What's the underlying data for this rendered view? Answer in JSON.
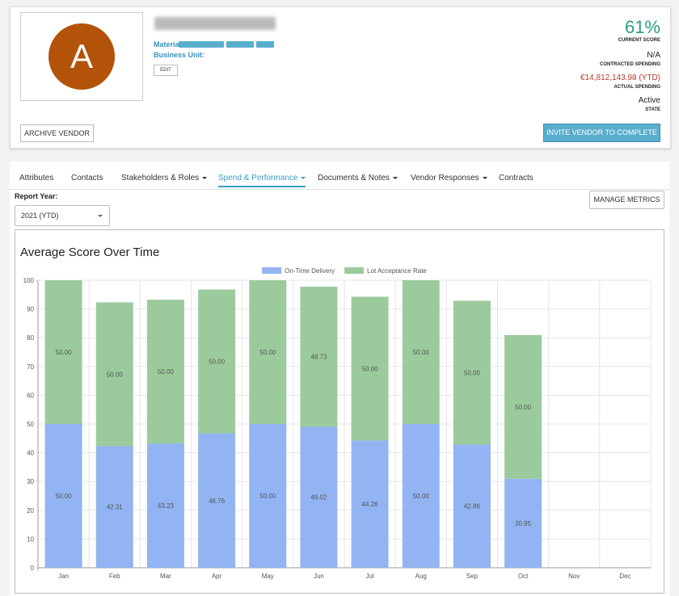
{
  "vendor": {
    "avatar_letter": "A",
    "material_label": "Material:",
    "business_unit_label": "Business Unit:",
    "edit_button": "EDIT",
    "archive_button": "ARCHIVE VENDOR",
    "invite_button": "INVITE VENDOR TO COMPLETE",
    "stats": [
      {
        "value": "61%",
        "label": "CURRENT SCORE"
      },
      {
        "value": "N/A",
        "label": "CONTRACTED SPENDING"
      },
      {
        "value": "€14,812,143.98 (YTD)",
        "label": "ACTUAL SPENDING"
      },
      {
        "value": "Active",
        "label": "STATE"
      }
    ]
  },
  "tabs": {
    "items": [
      "Attributes",
      "Contacts",
      "Stakeholders & Roles",
      "Spend & Performance",
      "Documents & Notes",
      "Vendor Responses",
      "Contracts"
    ],
    "dropdowns": [
      false,
      false,
      true,
      true,
      true,
      true,
      false
    ],
    "active": 3
  },
  "report": {
    "year_label": "Report Year:",
    "year_value": "2021 (YTD)",
    "manage_button": "MANAGE METRICS"
  },
  "chart_data": {
    "type": "bar",
    "stacked": true,
    "title": "Average Score Over Time",
    "categories": [
      "Jan",
      "Feb",
      "Mar",
      "Apr",
      "May",
      "Jun",
      "Jul",
      "Aug",
      "Sep",
      "Oct",
      "Nov",
      "Dec"
    ],
    "series": [
      {
        "name": "On-Time Delivery",
        "color": "#92b4f2",
        "values": [
          50,
          42.31,
          43.23,
          46.76,
          50,
          49.02,
          44.26,
          50,
          42.86,
          30.95,
          null,
          null
        ],
        "value_labels": [
          "50.00",
          "42.31",
          "43.23",
          "46.76",
          "50.00",
          "49.02",
          "44.26",
          "50.00",
          "42.86",
          "30.95",
          null,
          null
        ]
      },
      {
        "name": "Lot Acceptance Rate",
        "color": "#9bcb9c",
        "values": [
          50,
          50,
          50,
          50,
          50,
          48.73,
          50,
          50,
          50,
          50,
          null,
          null
        ],
        "value_labels": [
          "50.00",
          "50.00",
          "50.00",
          "50.00",
          "50.00",
          "48.73",
          "50.00",
          "50.00",
          "50.00",
          "50.00",
          null,
          null
        ]
      }
    ],
    "ylim": [
      0,
      100
    ],
    "yticks": [
      0,
      10,
      20,
      30,
      40,
      50,
      60,
      70,
      80,
      90,
      100
    ],
    "grid": true,
    "legend": "top"
  }
}
